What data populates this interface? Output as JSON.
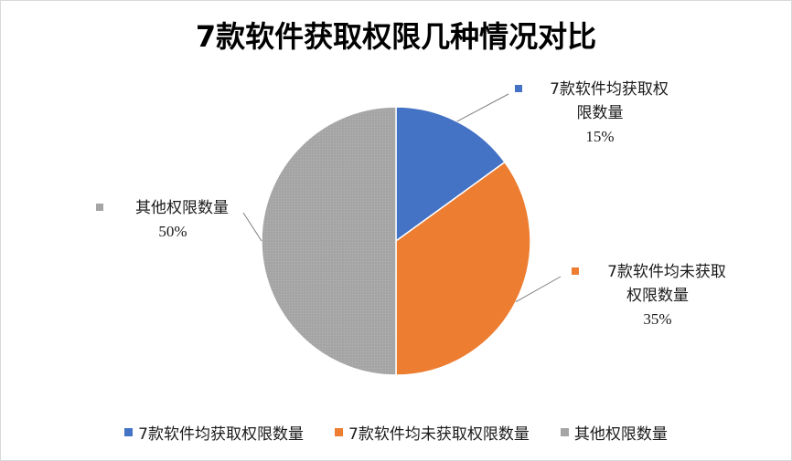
{
  "chart_data": {
    "type": "pie",
    "title": "7款软件获取权限几种情况对比",
    "categories": [
      "7款软件均获取权限数量",
      "7款软件均未获取权限数量",
      "其他权限数量"
    ],
    "values": [
      15,
      35,
      50
    ],
    "percent_labels": [
      "15%",
      "35%",
      "50%"
    ],
    "data_label_lines": [
      [
        "7款软件均获取权",
        "限数量"
      ],
      [
        "7款软件均未获取",
        "权限数量"
      ],
      [
        "其他权限数量"
      ]
    ],
    "colors": [
      "#4472c4",
      "#ed7d31",
      "#a5a5a5"
    ],
    "legend_position": "bottom"
  }
}
